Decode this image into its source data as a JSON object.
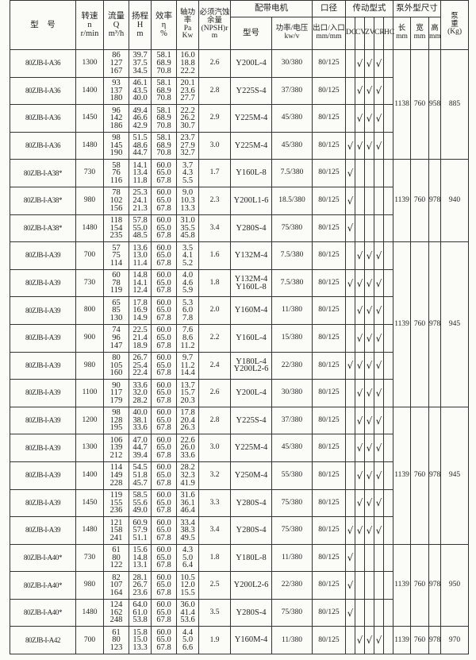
{
  "header": {
    "model": "型　号",
    "speed": [
      "转速",
      "n",
      "r/min"
    ],
    "flow": [
      "流量",
      "Q",
      "m³/h"
    ],
    "head": [
      "扬程",
      "H",
      "m"
    ],
    "efficiency": [
      "效率",
      "η",
      "%"
    ],
    "shaft_power": [
      "轴功率",
      "Pa",
      "Kw"
    ],
    "npsh": [
      "必须汽蚀",
      "余量",
      "(NPSH)r",
      "m"
    ],
    "motor_group": "配带电机",
    "motor_model": "型号",
    "motor_power": [
      "功率/电压",
      "kw/v"
    ],
    "caliber_group": "口径",
    "caliber": [
      "出口/入口",
      "mm/mm"
    ],
    "drive_group": "传动型式",
    "drive_types": [
      "DC",
      "CV",
      "ZV",
      "CR",
      "HC"
    ],
    "dims_group": "泵外型尺寸",
    "dims": [
      [
        "长",
        "mm"
      ],
      [
        "宽",
        "mm"
      ],
      [
        "高",
        "mm"
      ]
    ],
    "weight": [
      "泵",
      "重",
      "(Kg)"
    ]
  },
  "check_mark": "√",
  "rows": [
    {
      "model": "80ZJB-I-A36",
      "speed": "1300",
      "flow": [
        "86",
        "127",
        "167"
      ],
      "head": [
        "39.7",
        "37.5",
        "34.5"
      ],
      "eff": [
        "58.1",
        "68.9",
        "70.8"
      ],
      "power": [
        "16.0",
        "18.8",
        "22.2"
      ],
      "npsh": "2.6",
      "motor": [
        "Y200L-4"
      ],
      "kw": "30/380",
      "caliber": "80/125",
      "drive": [
        "CV",
        "ZV",
        "CR"
      ]
    },
    {
      "model": "80ZJB-I-A36",
      "speed": "1400",
      "flow": [
        "93",
        "137",
        "180"
      ],
      "head": [
        "46.1",
        "43.5",
        "40.0"
      ],
      "eff": [
        "58.1",
        "68.9",
        "70.8"
      ],
      "power": [
        "20.1",
        "23.6",
        "27.7"
      ],
      "npsh": "2.8",
      "motor": [
        "Y225S-4"
      ],
      "kw": "37/380",
      "caliber": "80/125",
      "drive": [
        "CV",
        "ZV",
        "CR"
      ]
    },
    {
      "model": "80ZJB-I-A36",
      "speed": "1450",
      "flow": [
        "96",
        "142",
        "186"
      ],
      "head": [
        "49.4",
        "46.6",
        "42.9"
      ],
      "eff": [
        "58.1",
        "68.9",
        "70.8"
      ],
      "power": [
        "22.2",
        "26.2",
        "30.7"
      ],
      "npsh": "2.9",
      "motor": [
        "Y225M-4"
      ],
      "kw": "45/380",
      "caliber": "80/125",
      "drive": [
        "CV",
        "ZV",
        "CR"
      ]
    },
    {
      "model": "80ZJB-I-A36",
      "speed": "1480",
      "flow": [
        "98",
        "145",
        "190"
      ],
      "head": [
        "51.5",
        "48.6",
        "44.7"
      ],
      "eff": [
        "58.1",
        "68.9",
        "70.8"
      ],
      "power": [
        "23.7",
        "27.9",
        "32.7"
      ],
      "npsh": "3.0",
      "motor": [
        "Y225M-4"
      ],
      "kw": "45/380",
      "caliber": "80/125",
      "drive": [
        "DC",
        "CV",
        "ZV",
        "CR"
      ]
    },
    {
      "model": "80ZJB-I-A38*",
      "speed": "730",
      "flow": [
        "58",
        "76",
        "116"
      ],
      "head": [
        "14.1",
        "13.4",
        "11.8"
      ],
      "eff": [
        "60.0",
        "65.0",
        "67.8"
      ],
      "power": [
        "3.7",
        "4.3",
        "5.5"
      ],
      "npsh": "1.7",
      "motor": [
        "Y160L-8"
      ],
      "kw": "7.5/380",
      "caliber": "80/125",
      "drive": [
        "DC"
      ]
    },
    {
      "model": "80ZJB-I-A38*",
      "speed": "980",
      "flow": [
        "78",
        "102",
        "156"
      ],
      "head": [
        "25.3",
        "24.1",
        "21.3"
      ],
      "eff": [
        "60.0",
        "65.0",
        "67.8"
      ],
      "power": [
        "9.0",
        "10.3",
        "13.3"
      ],
      "npsh": "2.3",
      "motor": [
        "Y200L1-6"
      ],
      "kw": "18.5/380",
      "caliber": "80/125",
      "drive": [
        "DC"
      ]
    },
    {
      "model": "80ZJB-I-A38*",
      "speed": "1480",
      "flow": [
        "118",
        "154",
        "235"
      ],
      "head": [
        "57.8",
        "55.0",
        "48.5"
      ],
      "eff": [
        "60.0",
        "65.0",
        "67.8"
      ],
      "power": [
        "31.0",
        "35.5",
        "45.8"
      ],
      "npsh": "3.4",
      "motor": [
        "Y280S-4"
      ],
      "kw": "75/380",
      "caliber": "80/125",
      "drive": [
        "DC"
      ]
    },
    {
      "model": "80ZJB-I-A39",
      "speed": "700",
      "flow": [
        "57",
        "75",
        "114"
      ],
      "head": [
        "13.6",
        "13.0",
        "11.4"
      ],
      "eff": [
        "60.0",
        "65.0",
        "67.8"
      ],
      "power": [
        "3.5",
        "4.1",
        "5.2"
      ],
      "npsh": "1.6",
      "motor": [
        "Y132M-4"
      ],
      "kw": "7.5/380",
      "caliber": "80/125",
      "drive": [
        "CV",
        "ZV",
        "CR"
      ]
    },
    {
      "model": "80ZJB-I-A39",
      "speed": "730",
      "flow": [
        "60",
        "78",
        "119"
      ],
      "head": [
        "14.8",
        "14.1",
        "12.4"
      ],
      "eff": [
        "60.0",
        "65.0",
        "67.8"
      ],
      "power": [
        "4.0",
        "4.6",
        "5.9"
      ],
      "npsh": "1.8",
      "motor": [
        "Y132M-4",
        "Y160L-8"
      ],
      "kw": "7.5/380",
      "caliber": "80/125",
      "drive": [
        "DC",
        "CV",
        "ZV",
        "CR"
      ]
    },
    {
      "model": "80ZJB-I-A39",
      "speed": "800",
      "flow": [
        "65",
        "85",
        "130"
      ],
      "head": [
        "17.8",
        "16.9",
        "14.9"
      ],
      "eff": [
        "60.0",
        "65.0",
        "67.8"
      ],
      "power": [
        "5.3",
        "6.0",
        "7.8"
      ],
      "npsh": "2.0",
      "motor": [
        "Y160M-4"
      ],
      "kw": "11/380",
      "caliber": "80/125",
      "drive": [
        "CV",
        "ZV",
        "CR"
      ]
    },
    {
      "model": "80ZJB-I-A39",
      "speed": "900",
      "flow": [
        "74",
        "96",
        "147"
      ],
      "head": [
        "22.5",
        "21.4",
        "18.9"
      ],
      "eff": [
        "60.0",
        "65.0",
        "67.8"
      ],
      "power": [
        "7.6",
        "8.6",
        "11.2"
      ],
      "npsh": "2.2",
      "motor": [
        "Y160L-4"
      ],
      "kw": "15/380",
      "caliber": "80/125",
      "drive": [
        "CV",
        "ZV",
        "CR"
      ]
    },
    {
      "model": "80ZJB-I-A39",
      "speed": "980",
      "flow": [
        "80",
        "105",
        "160"
      ],
      "head": [
        "26.7",
        "25.4",
        "22.4"
      ],
      "eff": [
        "60.0",
        "65.0",
        "67.8"
      ],
      "power": [
        "9.7",
        "11.2",
        "14.4"
      ],
      "npsh": "2.4",
      "motor": [
        "Y180L-4",
        "Y200L2-6"
      ],
      "kw": "22/380",
      "caliber": "80/125",
      "drive": [
        "DC",
        "CV",
        "ZV",
        "CR"
      ]
    },
    {
      "model": "80ZJB-I-A39",
      "speed": "1100",
      "flow": [
        "90",
        "117",
        "179"
      ],
      "head": [
        "33.6",
        "32.0",
        "28.2"
      ],
      "eff": [
        "60.0",
        "65.0",
        "67.8"
      ],
      "power": [
        "13.7",
        "15.7",
        "20.3"
      ],
      "npsh": "2.6",
      "motor": [
        "Y200L-4"
      ],
      "kw": "30/380",
      "caliber": "80/125",
      "drive": [
        "CV",
        "ZV",
        "CR"
      ]
    },
    {
      "model": "80ZJB-I-A39",
      "speed": "1200",
      "flow": [
        "98",
        "128",
        "195"
      ],
      "head": [
        "40.0",
        "38.1",
        "33.6"
      ],
      "eff": [
        "60.0",
        "65.0",
        "67.8"
      ],
      "power": [
        "17.8",
        "20.4",
        "26.3"
      ],
      "npsh": "2.8",
      "motor": [
        "Y225S-4"
      ],
      "kw": "37/380",
      "caliber": "80/125",
      "drive": [
        "CV",
        "ZV",
        "CR"
      ]
    },
    {
      "model": "80ZJB-I-A39",
      "speed": "1300",
      "flow": [
        "106",
        "139",
        "212"
      ],
      "head": [
        "47.0",
        "44.7",
        "39.4"
      ],
      "eff": [
        "60.0",
        "65.0",
        "67.8"
      ],
      "power": [
        "22.6",
        "26.0",
        "33.6"
      ],
      "npsh": "3.0",
      "motor": [
        "Y225M-4"
      ],
      "kw": "45/380",
      "caliber": "80/125",
      "drive": [
        "CV",
        "ZV",
        "CR"
      ]
    },
    {
      "model": "80ZJB-I-A39",
      "speed": "1400",
      "flow": [
        "114",
        "149",
        "228"
      ],
      "head": [
        "54.5",
        "51.8",
        "45.7"
      ],
      "eff": [
        "60.0",
        "65.0",
        "67.8"
      ],
      "power": [
        "28.2",
        "32.3",
        "41.9"
      ],
      "npsh": "3.2",
      "motor": [
        "Y250M-4"
      ],
      "kw": "55/380",
      "caliber": "80/125",
      "drive": [
        "CV",
        "ZV",
        "CR"
      ]
    },
    {
      "model": "80ZJB-I-A39",
      "speed": "1450",
      "flow": [
        "119",
        "155",
        "236"
      ],
      "head": [
        "58.5",
        "55.6",
        "49.0"
      ],
      "eff": [
        "60.0",
        "65.0",
        "67.8"
      ],
      "power": [
        "31.6",
        "36.1",
        "46.4"
      ],
      "npsh": "3.3",
      "motor": [
        "Y280S-4"
      ],
      "kw": "75/380",
      "caliber": "80/125",
      "drive": [
        "CV",
        "ZV",
        "CR"
      ]
    },
    {
      "model": "80ZJB-I-A39",
      "speed": "1480",
      "flow": [
        "121",
        "158",
        "241"
      ],
      "head": [
        "60.9",
        "57.9",
        "51.1"
      ],
      "eff": [
        "60.0",
        "65.0",
        "67.8"
      ],
      "power": [
        "33.4",
        "38.3",
        "49.5"
      ],
      "npsh": "3.4",
      "motor": [
        "Y280S-4"
      ],
      "kw": "75/380",
      "caliber": "80/125",
      "drive": [
        "DC",
        "CV",
        "ZV",
        "CR"
      ]
    },
    {
      "model": "80ZJB-I-A40*",
      "speed": "730",
      "flow": [
        "61",
        "80",
        "122"
      ],
      "head": [
        "15.6",
        "14.8",
        "13.1"
      ],
      "eff": [
        "60.0",
        "65.0",
        "67.8"
      ],
      "power": [
        "4.3",
        "5.0",
        "6.4"
      ],
      "npsh": "1.8",
      "motor": [
        "Y180L-8"
      ],
      "kw": "11/380",
      "caliber": "80/125",
      "drive": [
        "DC"
      ]
    },
    {
      "model": "80ZJB-I-A40*",
      "speed": "980",
      "flow": [
        "82",
        "107",
        "164"
      ],
      "head": [
        "28.1",
        "26.7",
        "23.6"
      ],
      "eff": [
        "60.0",
        "65.0",
        "67.8"
      ],
      "power": [
        "10.5",
        "12.0",
        "15.5"
      ],
      "npsh": "2.5",
      "motor": [
        "Y200L2-6"
      ],
      "kw": "22/380",
      "caliber": "80/125",
      "drive": [
        "DC"
      ]
    },
    {
      "model": "80ZJB-I-A40*",
      "speed": "1480",
      "flow": [
        "124",
        "162",
        "248"
      ],
      "head": [
        "64.0",
        "61.0",
        "53.8"
      ],
      "eff": [
        "60.0",
        "65.0",
        "67.8"
      ],
      "power": [
        "36.0",
        "41.4",
        "53.6"
      ],
      "npsh": "3.5",
      "motor": [
        "Y280S-4"
      ],
      "kw": "75/380",
      "caliber": "80/125",
      "drive": [
        "DC"
      ]
    },
    {
      "model": "80ZJB-I-A42",
      "speed": "700",
      "flow": [
        "61",
        "80",
        "123"
      ],
      "head": [
        "15.8",
        "15.0",
        "13.3"
      ],
      "eff": [
        "60.0",
        "65.0",
        "67.8"
      ],
      "power": [
        "4.4",
        "5.0",
        "6.6"
      ],
      "npsh": "1.9",
      "motor": [
        "Y160M-4"
      ],
      "kw": "11/380",
      "caliber": "80/125",
      "drive": [
        "CV",
        "ZV",
        "CR"
      ]
    }
  ],
  "dimension_groups": [
    {
      "span": 4,
      "length": "1138",
      "width": "760",
      "height": "958",
      "weight": "885"
    },
    {
      "span": 3,
      "length": "1139",
      "width": "760",
      "height": "978",
      "weight": "940"
    },
    {
      "span": 6,
      "length": "1139",
      "width": "760",
      "height": "978",
      "weight": "945"
    },
    {
      "span": 5,
      "length": "1139",
      "width": "760",
      "height": "978",
      "weight": "945"
    },
    {
      "span": 3,
      "length": "1139",
      "width": "760",
      "height": "978",
      "weight": "950"
    },
    {
      "span": 1,
      "length": "1139",
      "width": "760",
      "height": "978",
      "weight": "970"
    }
  ]
}
